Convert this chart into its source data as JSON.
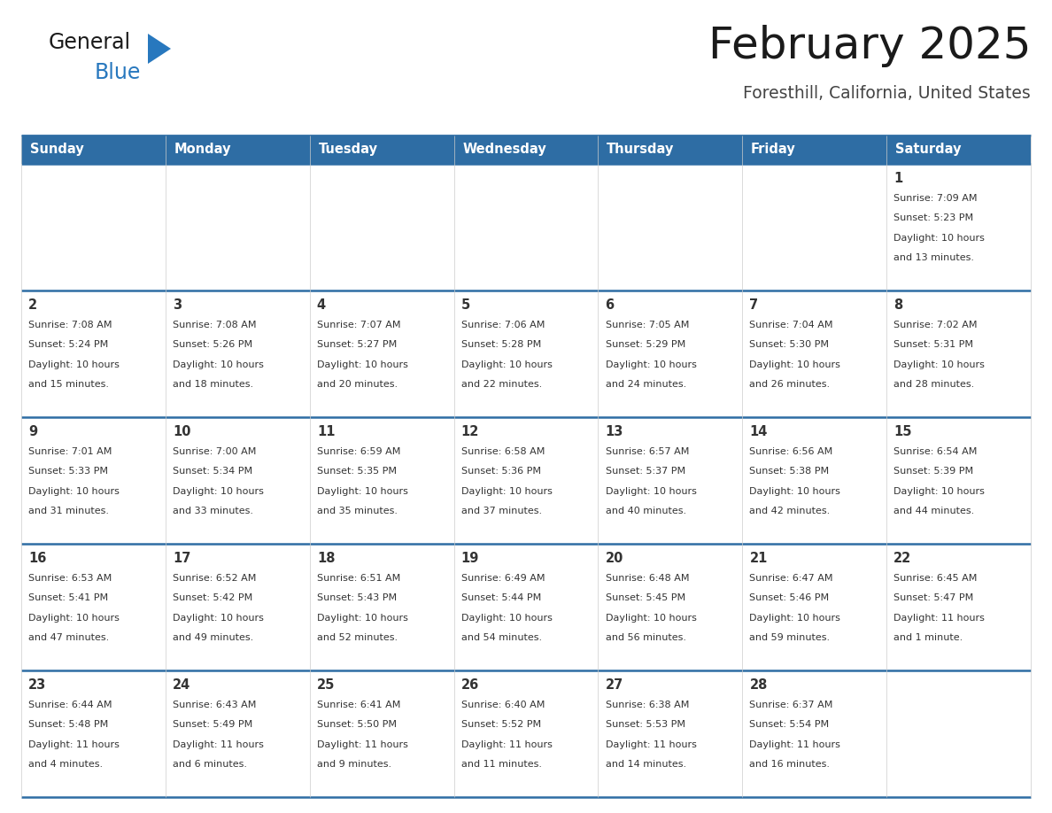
{
  "title": "February 2025",
  "subtitle": "Foresthill, California, United States",
  "header_bg": "#2E6DA4",
  "header_text_color": "#FFFFFF",
  "cell_bg": "#FFFFFF",
  "row_separator_color": "#2E6DA4",
  "col_separator_color": "#CCCCCC",
  "outer_border_color": "#2E6DA4",
  "text_color": "#333333",
  "day_names": [
    "Sunday",
    "Monday",
    "Tuesday",
    "Wednesday",
    "Thursday",
    "Friday",
    "Saturday"
  ],
  "days_data": [
    {
      "day": 1,
      "col": 6,
      "row": 0,
      "sunrise": "7:09 AM",
      "sunset": "5:23 PM",
      "daylight_line1": "Daylight: 10 hours",
      "daylight_line2": "and 13 minutes."
    },
    {
      "day": 2,
      "col": 0,
      "row": 1,
      "sunrise": "7:08 AM",
      "sunset": "5:24 PM",
      "daylight_line1": "Daylight: 10 hours",
      "daylight_line2": "and 15 minutes."
    },
    {
      "day": 3,
      "col": 1,
      "row": 1,
      "sunrise": "7:08 AM",
      "sunset": "5:26 PM",
      "daylight_line1": "Daylight: 10 hours",
      "daylight_line2": "and 18 minutes."
    },
    {
      "day": 4,
      "col": 2,
      "row": 1,
      "sunrise": "7:07 AM",
      "sunset": "5:27 PM",
      "daylight_line1": "Daylight: 10 hours",
      "daylight_line2": "and 20 minutes."
    },
    {
      "day": 5,
      "col": 3,
      "row": 1,
      "sunrise": "7:06 AM",
      "sunset": "5:28 PM",
      "daylight_line1": "Daylight: 10 hours",
      "daylight_line2": "and 22 minutes."
    },
    {
      "day": 6,
      "col": 4,
      "row": 1,
      "sunrise": "7:05 AM",
      "sunset": "5:29 PM",
      "daylight_line1": "Daylight: 10 hours",
      "daylight_line2": "and 24 minutes."
    },
    {
      "day": 7,
      "col": 5,
      "row": 1,
      "sunrise": "7:04 AM",
      "sunset": "5:30 PM",
      "daylight_line1": "Daylight: 10 hours",
      "daylight_line2": "and 26 minutes."
    },
    {
      "day": 8,
      "col": 6,
      "row": 1,
      "sunrise": "7:02 AM",
      "sunset": "5:31 PM",
      "daylight_line1": "Daylight: 10 hours",
      "daylight_line2": "and 28 minutes."
    },
    {
      "day": 9,
      "col": 0,
      "row": 2,
      "sunrise": "7:01 AM",
      "sunset": "5:33 PM",
      "daylight_line1": "Daylight: 10 hours",
      "daylight_line2": "and 31 minutes."
    },
    {
      "day": 10,
      "col": 1,
      "row": 2,
      "sunrise": "7:00 AM",
      "sunset": "5:34 PM",
      "daylight_line1": "Daylight: 10 hours",
      "daylight_line2": "and 33 minutes."
    },
    {
      "day": 11,
      "col": 2,
      "row": 2,
      "sunrise": "6:59 AM",
      "sunset": "5:35 PM",
      "daylight_line1": "Daylight: 10 hours",
      "daylight_line2": "and 35 minutes."
    },
    {
      "day": 12,
      "col": 3,
      "row": 2,
      "sunrise": "6:58 AM",
      "sunset": "5:36 PM",
      "daylight_line1": "Daylight: 10 hours",
      "daylight_line2": "and 37 minutes."
    },
    {
      "day": 13,
      "col": 4,
      "row": 2,
      "sunrise": "6:57 AM",
      "sunset": "5:37 PM",
      "daylight_line1": "Daylight: 10 hours",
      "daylight_line2": "and 40 minutes."
    },
    {
      "day": 14,
      "col": 5,
      "row": 2,
      "sunrise": "6:56 AM",
      "sunset": "5:38 PM",
      "daylight_line1": "Daylight: 10 hours",
      "daylight_line2": "and 42 minutes."
    },
    {
      "day": 15,
      "col": 6,
      "row": 2,
      "sunrise": "6:54 AM",
      "sunset": "5:39 PM",
      "daylight_line1": "Daylight: 10 hours",
      "daylight_line2": "and 44 minutes."
    },
    {
      "day": 16,
      "col": 0,
      "row": 3,
      "sunrise": "6:53 AM",
      "sunset": "5:41 PM",
      "daylight_line1": "Daylight: 10 hours",
      "daylight_line2": "and 47 minutes."
    },
    {
      "day": 17,
      "col": 1,
      "row": 3,
      "sunrise": "6:52 AM",
      "sunset": "5:42 PM",
      "daylight_line1": "Daylight: 10 hours",
      "daylight_line2": "and 49 minutes."
    },
    {
      "day": 18,
      "col": 2,
      "row": 3,
      "sunrise": "6:51 AM",
      "sunset": "5:43 PM",
      "daylight_line1": "Daylight: 10 hours",
      "daylight_line2": "and 52 minutes."
    },
    {
      "day": 19,
      "col": 3,
      "row": 3,
      "sunrise": "6:49 AM",
      "sunset": "5:44 PM",
      "daylight_line1": "Daylight: 10 hours",
      "daylight_line2": "and 54 minutes."
    },
    {
      "day": 20,
      "col": 4,
      "row": 3,
      "sunrise": "6:48 AM",
      "sunset": "5:45 PM",
      "daylight_line1": "Daylight: 10 hours",
      "daylight_line2": "and 56 minutes."
    },
    {
      "day": 21,
      "col": 5,
      "row": 3,
      "sunrise": "6:47 AM",
      "sunset": "5:46 PM",
      "daylight_line1": "Daylight: 10 hours",
      "daylight_line2": "and 59 minutes."
    },
    {
      "day": 22,
      "col": 6,
      "row": 3,
      "sunrise": "6:45 AM",
      "sunset": "5:47 PM",
      "daylight_line1": "Daylight: 11 hours",
      "daylight_line2": "and 1 minute."
    },
    {
      "day": 23,
      "col": 0,
      "row": 4,
      "sunrise": "6:44 AM",
      "sunset": "5:48 PM",
      "daylight_line1": "Daylight: 11 hours",
      "daylight_line2": "and 4 minutes."
    },
    {
      "day": 24,
      "col": 1,
      "row": 4,
      "sunrise": "6:43 AM",
      "sunset": "5:49 PM",
      "daylight_line1": "Daylight: 11 hours",
      "daylight_line2": "and 6 minutes."
    },
    {
      "day": 25,
      "col": 2,
      "row": 4,
      "sunrise": "6:41 AM",
      "sunset": "5:50 PM",
      "daylight_line1": "Daylight: 11 hours",
      "daylight_line2": "and 9 minutes."
    },
    {
      "day": 26,
      "col": 3,
      "row": 4,
      "sunrise": "6:40 AM",
      "sunset": "5:52 PM",
      "daylight_line1": "Daylight: 11 hours",
      "daylight_line2": "and 11 minutes."
    },
    {
      "day": 27,
      "col": 4,
      "row": 4,
      "sunrise": "6:38 AM",
      "sunset": "5:53 PM",
      "daylight_line1": "Daylight: 11 hours",
      "daylight_line2": "and 14 minutes."
    },
    {
      "day": 28,
      "col": 5,
      "row": 4,
      "sunrise": "6:37 AM",
      "sunset": "5:54 PM",
      "daylight_line1": "Daylight: 11 hours",
      "daylight_line2": "and 16 minutes."
    }
  ],
  "num_rows": 5,
  "num_cols": 7,
  "logo_text1": "General",
  "logo_text2": "Blue",
  "logo_color1": "#1a1a1a",
  "logo_color2": "#2878BE",
  "logo_triangle_color": "#2878BE",
  "fig_width": 11.88,
  "fig_height": 9.18,
  "dpi": 100
}
